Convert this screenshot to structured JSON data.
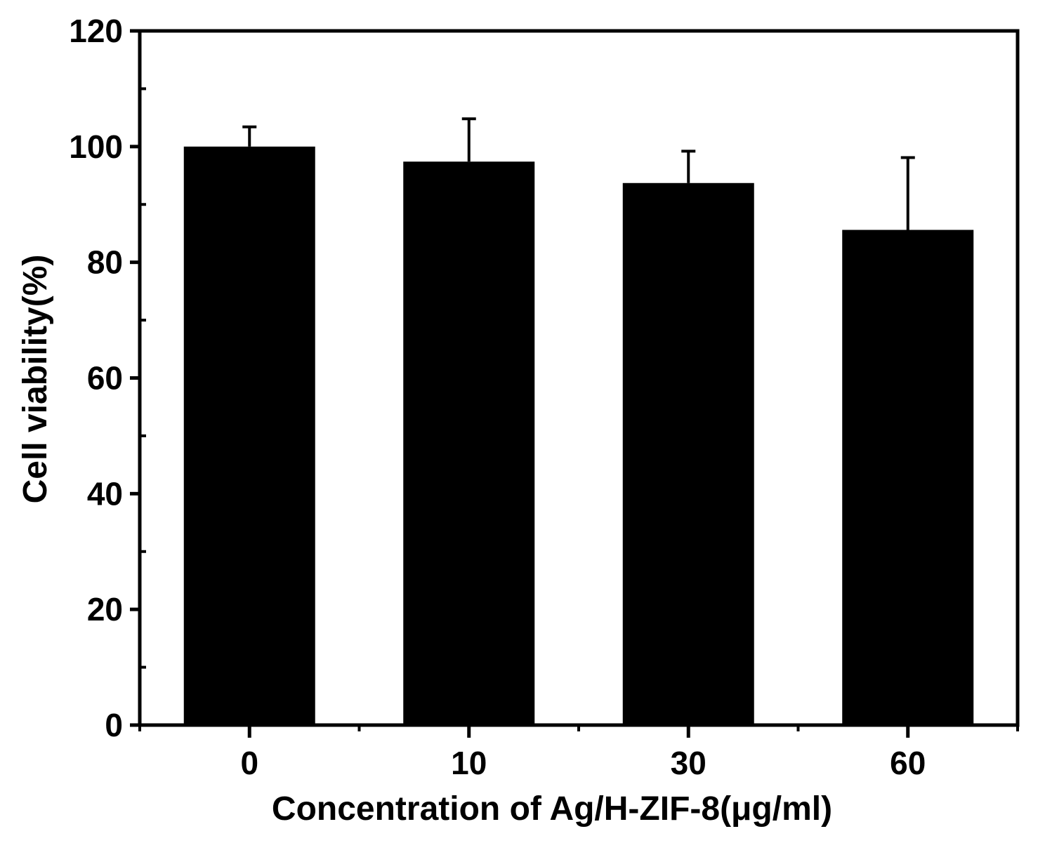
{
  "chart_data": {
    "type": "bar",
    "title": "",
    "xlabel": "Concentration of Ag/H-ZIF-8(μg/ml)",
    "ylabel": "Cell viability(%)",
    "categories": [
      "0",
      "10",
      "30",
      "60"
    ],
    "values": [
      100,
      97.4,
      93.7,
      85.6
    ],
    "errors": [
      3.4,
      7.4,
      5.5,
      12.5
    ],
    "ylim": [
      0,
      120
    ],
    "yticks": [
      "0",
      "20",
      "40",
      "60",
      "80",
      "100",
      "120"
    ],
    "grid": false,
    "legend": "none",
    "colors": {
      "bar": "#000000",
      "axis": "#000000",
      "background": "#ffffff"
    }
  }
}
